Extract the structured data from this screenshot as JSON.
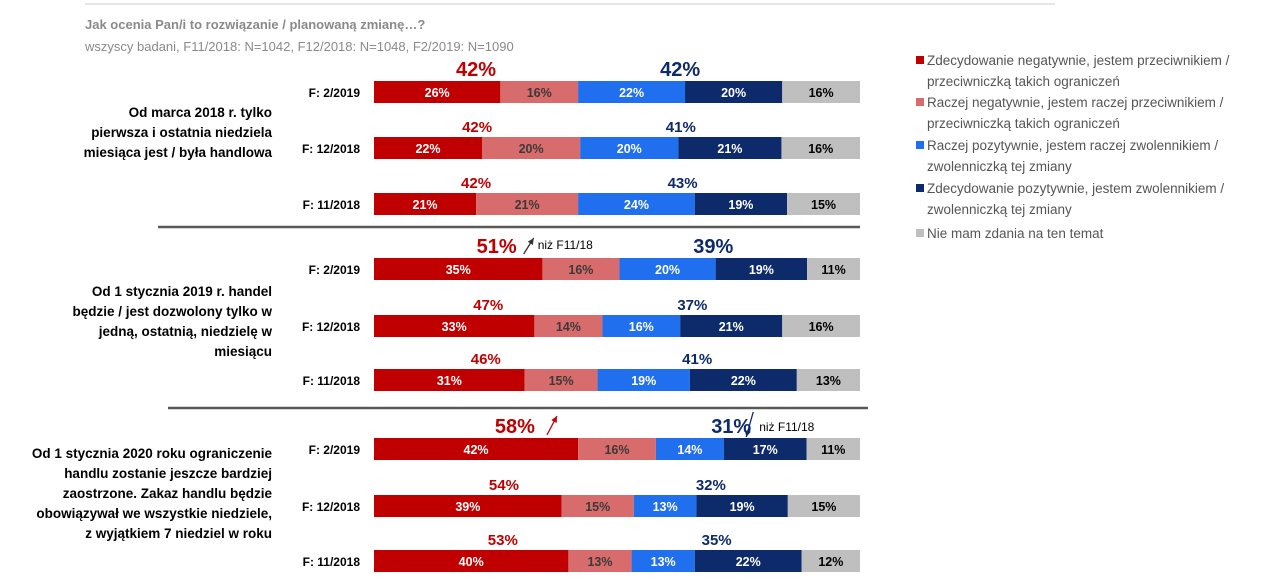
{
  "title": "Jak ocenia Pan/i to rozwiązanie / planowaną zmianę…?",
  "subtitle": "wszyscy badani, F11/2018: N=1042, F12/2018: N=1048, F2/2019: N=1090",
  "chart_data": {
    "type": "bar",
    "orientation": "horizontal-stacked-100",
    "series": [
      {
        "name": "Zdecydowanie negatywnie, jestem przeciwnikiem / przeciwniczką takich ograniczeń",
        "color": "#c00000"
      },
      {
        "name": "Raczej negatywnie, jestem raczej przeciwnikiem / przeciwniczką takich ograniczeń",
        "color": "#d86b6b"
      },
      {
        "name": "Raczej pozytywnie, jestem raczej zwolennikiem / zwolenniczką tej zmiany",
        "color": "#1f6fee"
      },
      {
        "name": "Zdecydowanie pozytywnie, jestem zwolennikiem / zwolenniczką tej zmiany",
        "color": "#0d2a6b"
      },
      {
        "name": "Nie mam zdania na ten temat",
        "color": "#bfbfbf"
      }
    ],
    "groups": [
      {
        "label": [
          "Od marca 2018 r. tylko",
          "pierwsza i ostatnia niedziela",
          "miesiąca jest / była handlowa"
        ],
        "rows": [
          {
            "label": "F: 2/2019",
            "values": [
              26,
              16,
              22,
              20,
              16
            ],
            "neg_total": "42%",
            "pos_total": "42%"
          },
          {
            "label": "F: 12/2018",
            "values": [
              22,
              20,
              20,
              21,
              16
            ],
            "neg_total": "42%",
            "pos_total": "41%"
          },
          {
            "label": "F: 11/2018",
            "values": [
              21,
              21,
              24,
              19,
              15
            ],
            "neg_total": "42%",
            "pos_total": "43%"
          }
        ]
      },
      {
        "label": [
          "Od 1 stycznia 2019 r. handel",
          "będzie / jest dozwolony tylko w",
          "jedną, ostatnią, niedzielę w",
          "miesiącu"
        ],
        "rows": [
          {
            "label": "F: 2/2019",
            "values": [
              35,
              16,
              20,
              19,
              11
            ],
            "neg_total": "51%",
            "pos_total": "39%"
          },
          {
            "label": "F: 12/2018",
            "values": [
              33,
              14,
              16,
              21,
              16
            ],
            "neg_total": "47%",
            "pos_total": "37%"
          },
          {
            "label": "F: 11/2018",
            "values": [
              31,
              15,
              19,
              22,
              13
            ],
            "neg_total": "46%",
            "pos_total": "41%"
          }
        ]
      },
      {
        "label": [
          "Od 1 stycznia 2020 roku ograniczenie",
          "handlu zostanie jeszcze bardziej",
          "zaostrzone. Zakaz handlu będzie",
          "obowiązywał we wszystkie niedziele,",
          "z wyjątkiem 7 niedziel w roku"
        ],
        "rows": [
          {
            "label": "F: 2/2019",
            "values": [
              42,
              16,
              14,
              17,
              11
            ],
            "neg_total": "58%",
            "pos_total": "31%"
          },
          {
            "label": "F: 12/2018",
            "values": [
              39,
              15,
              13,
              19,
              15
            ],
            "neg_total": "54%",
            "pos_total": "32%"
          },
          {
            "label": "F: 11/2018",
            "values": [
              40,
              13,
              13,
              22,
              12
            ],
            "neg_total": "53%",
            "pos_total": "35%"
          }
        ]
      }
    ],
    "annotations": [
      {
        "group": 1,
        "row": 0,
        "text": "niż F11/18",
        "arrow": "up"
      },
      {
        "group": 2,
        "row": 0,
        "text": "niż F11/18",
        "arrow": "down"
      },
      {
        "group": 2,
        "row": 0,
        "arrow": "up",
        "text": ""
      }
    ]
  },
  "legend": [
    [
      "Zdecydowanie negatywnie, jestem przeciwnikiem /",
      "przeciwniczką takich ograniczeń"
    ],
    [
      "Raczej negatywnie, jestem raczej przeciwnikiem /",
      "przeciwniczką takich ograniczeń"
    ],
    [
      "Raczej pozytywnie, jestem raczej zwolennikiem /",
      "zwolenniczką tej zmiany"
    ],
    [
      "Zdecydowanie pozytywnie, jestem zwolennikiem /",
      "zwolenniczką tej zmiany"
    ],
    [
      "Nie mam zdania na ten temat"
    ]
  ]
}
